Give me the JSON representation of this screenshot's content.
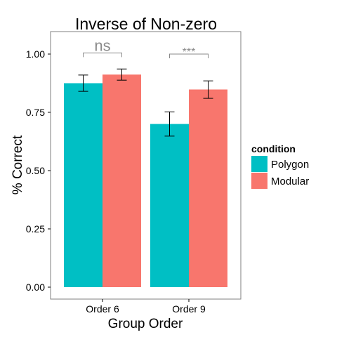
{
  "chart_data": {
    "type": "bar",
    "title": "Inverse of Non-zero",
    "xlabel": "Group Order",
    "ylabel": "% Correct",
    "categories": [
      "Order 6",
      "Order 9"
    ],
    "ylim": [
      0,
      1.05
    ],
    "yticks": [
      "0.00",
      "0.25",
      "0.50",
      "0.75",
      "1.00"
    ],
    "grid": false,
    "legend": {
      "title": "condition",
      "position": "right"
    },
    "series": [
      {
        "name": "Polygon",
        "color": "#00BFC4",
        "values": [
          0.875,
          0.7
        ],
        "err_low": [
          0.84,
          0.648
        ],
        "err_high": [
          0.91,
          0.752
        ]
      },
      {
        "name": "Modular",
        "color": "#F8766D",
        "values": [
          0.912,
          0.848
        ],
        "err_low": [
          0.888,
          0.81
        ],
        "err_high": [
          0.936,
          0.885
        ]
      }
    ],
    "annotations": [
      {
        "category": "Order 6",
        "label": "ns",
        "y": 1.005
      },
      {
        "category": "Order 9",
        "label": "***",
        "y": 1.0
      }
    ]
  }
}
